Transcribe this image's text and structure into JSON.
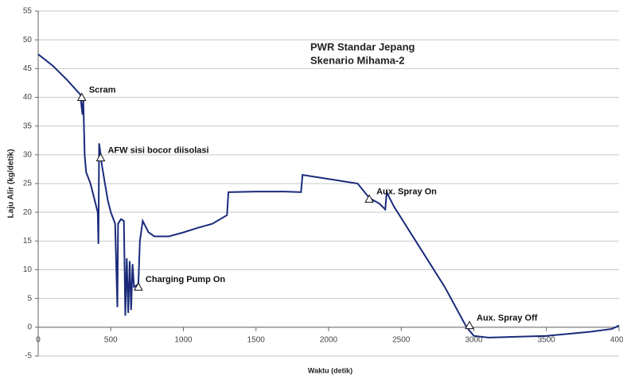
{
  "chart_data": {
    "type": "line",
    "title": [
      "PWR Standar Jepang",
      "Skenario Mihama-2"
    ],
    "x_label": "Waktu (detik)",
    "y_label": "Laju Alir (kg/detik)",
    "color": "#1a2a7a",
    "x": [
      0,
      100,
      200,
      290,
      300,
      305,
      310,
      320,
      330,
      360,
      390,
      410,
      415,
      420,
      430,
      440,
      460,
      480,
      500,
      530,
      545,
      550,
      570,
      590,
      600,
      610,
      620,
      630,
      640,
      650,
      660,
      690,
      700,
      720,
      760,
      800,
      900,
      1000,
      1100,
      1200,
      1300,
      1310,
      1500,
      1700,
      1810,
      1820,
      2000,
      2200,
      2280,
      2350,
      2390,
      2400,
      2450,
      2600,
      2800,
      2950,
      3000,
      3100,
      3500,
      3800,
      3950,
      4000
    ],
    "values": [
      47.5,
      45.5,
      43,
      40.5,
      38,
      37,
      40,
      30,
      27,
      25,
      22,
      20,
      14.5,
      32,
      30,
      28,
      25,
      22,
      20,
      18,
      3.5,
      18,
      18.8,
      18.5,
      2,
      12,
      2.5,
      11.5,
      3,
      11,
      7,
      7.5,
      15,
      18.5,
      16.5,
      15.8,
      15.8,
      16.5,
      17.3,
      18,
      19.5,
      23.5,
      23.6,
      23.6,
      23.5,
      26.5,
      25.8,
      25,
      22.5,
      21.5,
      20.5,
      23.5,
      21,
      15,
      7,
      0,
      -1.5,
      -1.8,
      -1.5,
      -0.8,
      -0.3,
      0.3
    ],
    "annotations": [
      {
        "text": "Scram",
        "x": 300,
        "y": 40
      },
      {
        "text": "AFW sisi bocor diisolasi",
        "x": 430,
        "y": 29.5
      },
      {
        "text": "Charging Pump On",
        "x": 690,
        "y": 7
      },
      {
        "text": "Aux. Spray On",
        "x": 2280,
        "y": 22.3
      },
      {
        "text": "Aux. Spray Off",
        "x": 2970,
        "y": 0.3
      }
    ],
    "xlim": [
      0,
      4000
    ],
    "xticks": [
      0,
      500,
      1000,
      1500,
      2000,
      2500,
      3000,
      3500,
      4000
    ],
    "ylim": [
      -5,
      55
    ],
    "yticks": [
      -5,
      0,
      5,
      10,
      15,
      20,
      25,
      30,
      35,
      40,
      45,
      50,
      55
    ],
    "grid": true
  }
}
